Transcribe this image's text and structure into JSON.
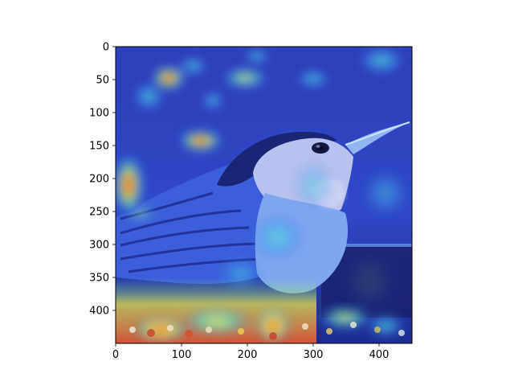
{
  "figure": {
    "background": "#ffffff",
    "axes_color": "#000000"
  },
  "image": {
    "subject": "bird",
    "overlay": "heatmap",
    "colormap": "jet",
    "x_range": [
      0,
      450
    ],
    "y_range": [
      0,
      450
    ]
  },
  "x_axis": {
    "ticks": [
      {
        "value": 0,
        "label": "0"
      },
      {
        "value": 100,
        "label": "100"
      },
      {
        "value": 200,
        "label": "200"
      },
      {
        "value": 300,
        "label": "300"
      },
      {
        "value": 400,
        "label": "400"
      }
    ]
  },
  "y_axis": {
    "inverted": true,
    "ticks": [
      {
        "value": 0,
        "label": "0"
      },
      {
        "value": 50,
        "label": "50"
      },
      {
        "value": 100,
        "label": "100"
      },
      {
        "value": 150,
        "label": "150"
      },
      {
        "value": 200,
        "label": "200"
      },
      {
        "value": 250,
        "label": "250"
      },
      {
        "value": 300,
        "label": "300"
      },
      {
        "value": 350,
        "label": "350"
      },
      {
        "value": 400,
        "label": "400"
      }
    ]
  }
}
